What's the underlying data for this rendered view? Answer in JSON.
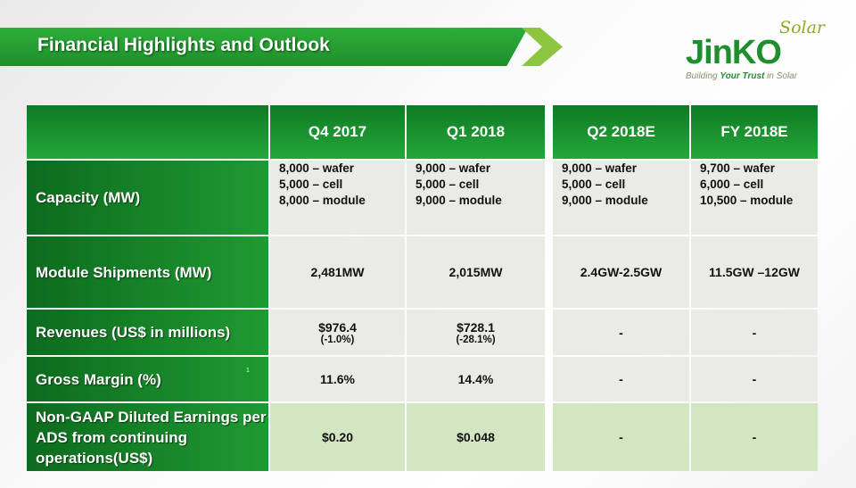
{
  "title": "Financial Highlights and Outlook",
  "logo": {
    "solar": "Solar",
    "brand": "JinKO",
    "tagline_pre": "Building ",
    "tagline_bold": "Your Trust",
    "tagline_post": " in Solar"
  },
  "table": {
    "columns": [
      "",
      "Q4 2017",
      "Q1 2018",
      "Q2 2018E",
      "FY 2018E"
    ],
    "rows": [
      {
        "label": "Capacity (MW)",
        "values": [
          [
            "8,000 – wafer",
            "5,000 – cell",
            "8,000 – module"
          ],
          [
            "9,000 – wafer",
            "5,000 – cell",
            "9,000 – module"
          ],
          [
            "9,000 – wafer",
            "5,000 – cell",
            "9,000 – module"
          ],
          [
            "9,700 – wafer",
            "6,000 – cell",
            "10,500 – module"
          ]
        ]
      },
      {
        "label": "Module Shipments (MW)",
        "values": [
          "2,481MW",
          "2,015MW",
          "2.4GW-2.5GW",
          "11.5GW –12GW"
        ]
      },
      {
        "label": "Revenues (US$ in millions)",
        "values": [
          "$976.4",
          "$728.1",
          "-",
          "-"
        ],
        "sub": [
          "(-1.0%)",
          "(-28.1%)"
        ]
      },
      {
        "label": "Gross Margin (%)",
        "footnote": "1",
        "values": [
          "11.6%",
          "14.4%",
          "-",
          "-"
        ]
      },
      {
        "label": "Non-GAAP Diluted Earnings per ADS from continuing operations(US$)",
        "values": [
          "$0.20",
          "$0.048",
          "-",
          "-"
        ]
      }
    ]
  }
}
